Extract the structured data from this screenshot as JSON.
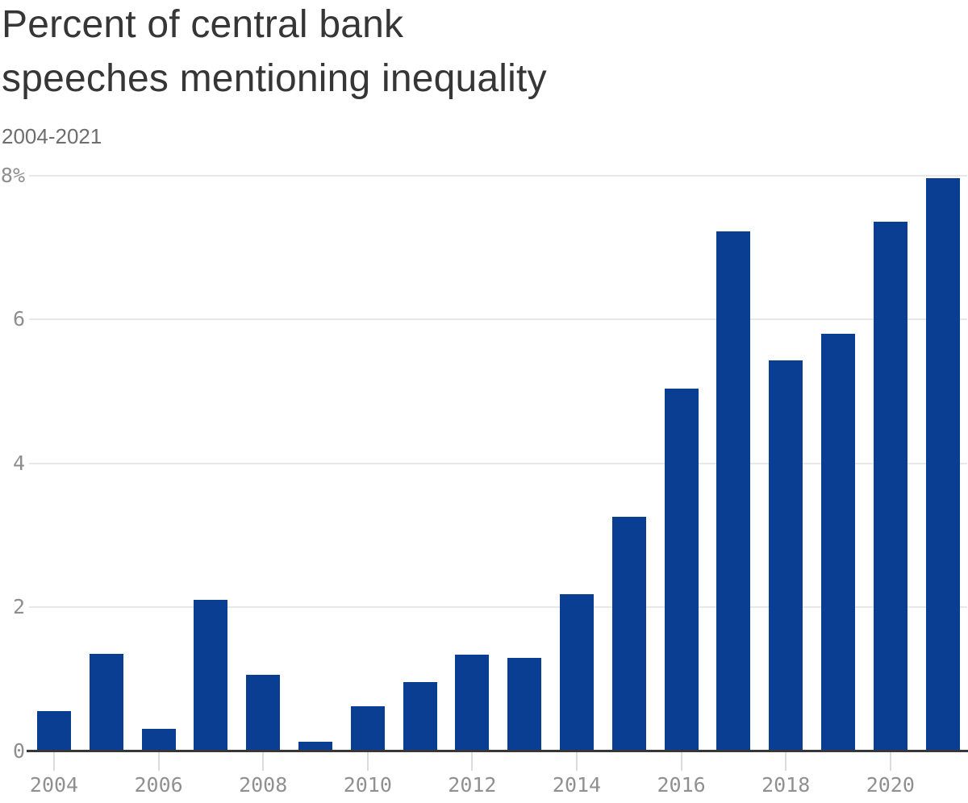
{
  "header": {
    "title_line1": "Percent of central bank",
    "title_line2": "speeches mentioning inequality",
    "subtitle": "2004-2021"
  },
  "colors": {
    "background": "#ffffff",
    "bar": "#093e92",
    "title_text": "#363636",
    "subtitle_text": "#6e6e6e",
    "axis_label": "#8e8e8e",
    "x_axis_label": "#909090",
    "gridline": "#e8e8e8",
    "baseline": "#373737",
    "tick": "#dcdcdc"
  },
  "chart_data": {
    "type": "bar",
    "title": "Percent of central bank speeches mentioning inequality",
    "subtitle": "2004-2021",
    "unit": "%",
    "categories": [
      2004,
      2005,
      2006,
      2007,
      2008,
      2009,
      2010,
      2011,
      2012,
      2013,
      2014,
      2015,
      2016,
      2017,
      2018,
      2019,
      2020,
      2021
    ],
    "values": [
      0.55,
      1.35,
      0.3,
      2.1,
      1.05,
      0.12,
      0.62,
      0.95,
      1.33,
      1.29,
      2.17,
      3.25,
      5.03,
      7.22,
      5.42,
      5.79,
      7.35,
      7.95
    ],
    "ylim": [
      0,
      8
    ],
    "grid": "horizontal",
    "legend": "none",
    "y_ticks": [
      {
        "value": 8,
        "label": "8%"
      },
      {
        "value": 6,
        "label": "6"
      },
      {
        "value": 4,
        "label": "4"
      },
      {
        "value": 2,
        "label": "2"
      },
      {
        "value": 0,
        "label": "0"
      }
    ],
    "x_tick_labels": [
      "2004",
      "2006",
      "2008",
      "2010",
      "2012",
      "2014",
      "2016",
      "2018",
      "2020"
    ]
  }
}
